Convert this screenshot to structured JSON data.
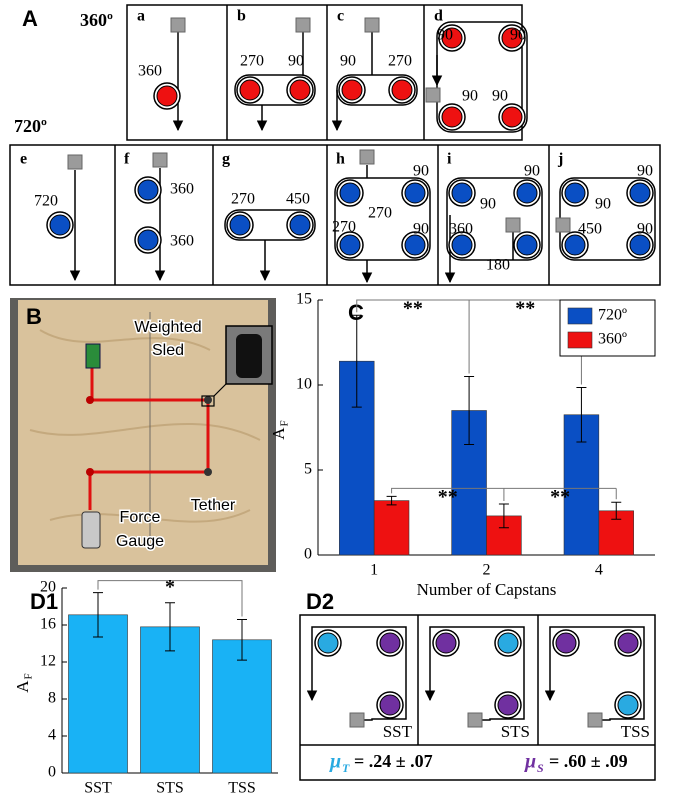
{
  "panel_a": {
    "label": "A",
    "top_row": "360º",
    "bottom_row": "720º",
    "top_color": "#ee1111",
    "bottom_color": "#0a4fc4",
    "diagrams": [
      {
        "letter": "a",
        "labels": [
          "360"
        ]
      },
      {
        "letter": "b",
        "labels": [
          "270",
          "90"
        ]
      },
      {
        "letter": "c",
        "labels": [
          "90",
          "270"
        ]
      },
      {
        "letter": "d",
        "labels": [
          "90",
          "90",
          "90",
          "90"
        ]
      },
      {
        "letter": "e",
        "labels": [
          "720"
        ]
      },
      {
        "letter": "f",
        "labels": [
          "360",
          "360"
        ]
      },
      {
        "letter": "g",
        "labels": [
          "270",
          "450"
        ]
      },
      {
        "letter": "h",
        "labels": [
          "90",
          "270",
          "270",
          "90"
        ]
      },
      {
        "letter": "i",
        "labels": [
          "90",
          "90",
          "360",
          "180"
        ]
      },
      {
        "letter": "j",
        "labels": [
          "90",
          "90",
          "450",
          "90"
        ]
      }
    ]
  },
  "panel_b": {
    "label": "B",
    "sled": [
      "Weighted",
      "Sled"
    ],
    "tether": "Tether",
    "gauge": [
      "Force",
      "Gauge"
    ]
  },
  "chart_data": [
    {
      "type": "bar",
      "panel": "C",
      "categories": [
        "1",
        "2",
        "4"
      ],
      "xlabel": "Number of Capstans",
      "ylabel": "A",
      "ylabel_sub": "F",
      "ylim": [
        0,
        15
      ],
      "yticks": [
        0,
        5,
        10,
        15
      ],
      "legend": "top-right",
      "series": [
        {
          "name": "720º",
          "color": "#0a4fc4",
          "values": [
            11.4,
            8.5,
            8.25
          ],
          "errors": [
            2.7,
            2.0,
            1.6
          ]
        },
        {
          "name": "360º",
          "color": "#ee1111",
          "values": [
            3.2,
            2.3,
            2.6
          ],
          "errors": [
            0.25,
            0.7,
            0.5
          ]
        }
      ],
      "annotations": [
        "**",
        "**",
        "**",
        "**"
      ]
    },
    {
      "type": "bar",
      "panel": "D1",
      "categories": [
        "SST",
        "STS",
        "TSS"
      ],
      "ylabel": "A",
      "ylabel_sub": "F",
      "ylim": [
        0,
        20
      ],
      "yticks": [
        0,
        4,
        8,
        12,
        16,
        20
      ],
      "color": "#19b2f5",
      "values": [
        17.1,
        15.8,
        14.4
      ],
      "errors": [
        2.4,
        2.6,
        2.2
      ],
      "annotations": [
        "*"
      ]
    }
  ],
  "panel_d2": {
    "label": "D2",
    "configs": [
      "SST",
      "STS",
      "TSS"
    ],
    "mu_t": {
      "symbol": "μ",
      "sub": "T",
      "text": "= .24 ± .07",
      "color": "#29aae1"
    },
    "mu_s": {
      "symbol": "μ",
      "sub": "S",
      "text": "= .60 ± .09",
      "color": "#7030a0"
    }
  }
}
